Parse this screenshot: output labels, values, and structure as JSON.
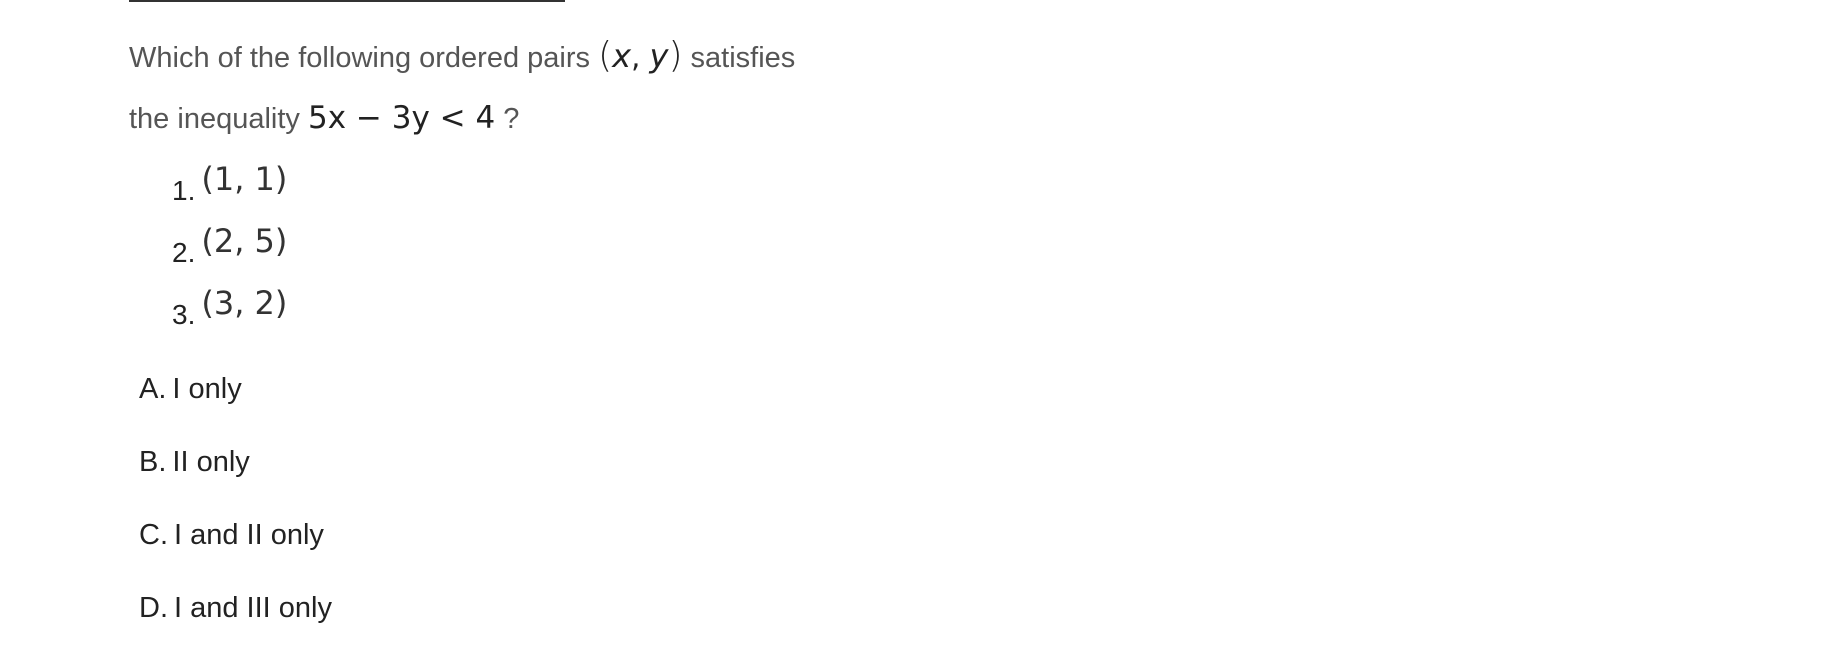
{
  "question": {
    "line1_text": "Which of the following ordered pairs",
    "line1_open_paren": "(",
    "line1_var_x": "x",
    "line1_comma": ", ",
    "line1_var_y": "y",
    "line1_close_paren": ")",
    "line1_suffix": "satisfies",
    "line2_text": "the inequality",
    "inequality": "5x − 3y < 4",
    "line2_suffix": "?"
  },
  "items": [
    {
      "number": "1.",
      "pair": "(1, 1)"
    },
    {
      "number": "2.",
      "pair": "(2, 5)"
    },
    {
      "number": "3.",
      "pair": "(3, 2)"
    }
  ],
  "choices": [
    {
      "letter": "A.",
      "text": "I only"
    },
    {
      "letter": "B.",
      "text": "II only"
    },
    {
      "letter": "C.",
      "text": "I and II only"
    },
    {
      "letter": "D.",
      "text": "I and III only"
    }
  ]
}
